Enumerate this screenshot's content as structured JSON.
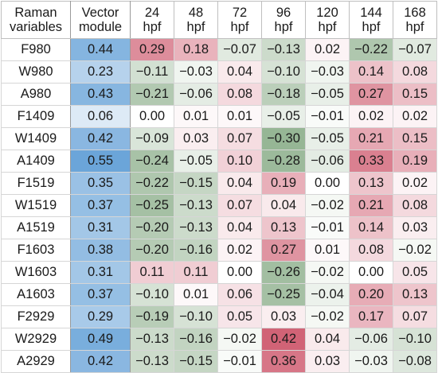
{
  "table": {
    "header": {
      "variable": [
        "Raman",
        "variables"
      ],
      "vector": [
        "Vector",
        "module"
      ],
      "hours": [
        [
          "24",
          "hpf"
        ],
        [
          "48",
          "hpf"
        ],
        [
          "72",
          "hpf"
        ],
        [
          "96",
          "hpf"
        ],
        [
          "120",
          "hpf"
        ],
        [
          "144",
          "hpf"
        ],
        [
          "168",
          "hpf"
        ]
      ]
    },
    "colors": {
      "vector_blue": "#5b9bd5",
      "positive_red": "#c9475e",
      "negative_green": "#5b8c59"
    },
    "rows": [
      {
        "name": "F980",
        "vm": "0.44",
        "vals": [
          "0.29",
          "0.18",
          "−0.07",
          "−0.13",
          "0.02",
          "−0.22",
          "−0.07"
        ]
      },
      {
        "name": "W980",
        "vm": "0.23",
        "vals": [
          "−0.11",
          "−0.03",
          "0.04",
          "−0.10",
          "−0.03",
          "0.14",
          "0.08"
        ]
      },
      {
        "name": "A980",
        "vm": "0.43",
        "vals": [
          "−0.21",
          "−0.06",
          "0.08",
          "−0.18",
          "−0.05",
          "0.27",
          "0.15"
        ]
      },
      {
        "name": "F1409",
        "vm": "0.06",
        "vals": [
          "0.00",
          "0.01",
          "0.01",
          "−0.05",
          "−0.01",
          "0.02",
          "0.02"
        ]
      },
      {
        "name": "W1409",
        "vm": "0.42",
        "vals": [
          "−0.09",
          "0.03",
          "0.07",
          "−0.30",
          "−0.05",
          "0.21",
          "0.15"
        ]
      },
      {
        "name": "A1409",
        "vm": "0.55",
        "vals": [
          "−0.24",
          "−0.05",
          "0.10",
          "−0.28",
          "−0.06",
          "0.33",
          "0.19"
        ]
      },
      {
        "name": "F1519",
        "vm": "0.35",
        "vals": [
          "−0.22",
          "−0.15",
          "0.04",
          "0.19",
          "0.00",
          "0.13",
          "0.02"
        ]
      },
      {
        "name": "W1519",
        "vm": "0.37",
        "vals": [
          "−0.25",
          "−0.13",
          "0.07",
          "0.04",
          "−0.02",
          "0.21",
          "0.08"
        ]
      },
      {
        "name": "A1519",
        "vm": "0.31",
        "vals": [
          "−0.20",
          "−0.13",
          "0.04",
          "0.13",
          "−0.01",
          "0.14",
          "0.03"
        ]
      },
      {
        "name": "F1603",
        "vm": "0.38",
        "vals": [
          "−0.20",
          "−0.16",
          "0.02",
          "0.27",
          "0.01",
          "0.08",
          "−0.02"
        ]
      },
      {
        "name": "W1603",
        "vm": "0.31",
        "vals": [
          "0.11",
          "0.11",
          "0.00",
          "−0.26",
          "−0.02",
          "0.00",
          "0.05"
        ]
      },
      {
        "name": "A1603",
        "vm": "0.37",
        "vals": [
          "−0.10",
          "0.01",
          "0.06",
          "−0.25",
          "−0.04",
          "0.20",
          "0.13"
        ]
      },
      {
        "name": "F2929",
        "vm": "0.29",
        "vals": [
          "−0.19",
          "−0.10",
          "0.05",
          "0.03",
          "−0.02",
          "0.17",
          "0.07"
        ]
      },
      {
        "name": "W2929",
        "vm": "0.49",
        "vals": [
          "−0.13",
          "−0.16",
          "−0.02",
          "0.42",
          "0.04",
          "−0.06",
          "−0.10"
        ]
      },
      {
        "name": "A2929",
        "vm": "0.42",
        "vals": [
          "−0.13",
          "−0.15",
          "−0.01",
          "0.36",
          "0.03",
          "−0.03",
          "−0.08"
        ]
      }
    ]
  }
}
